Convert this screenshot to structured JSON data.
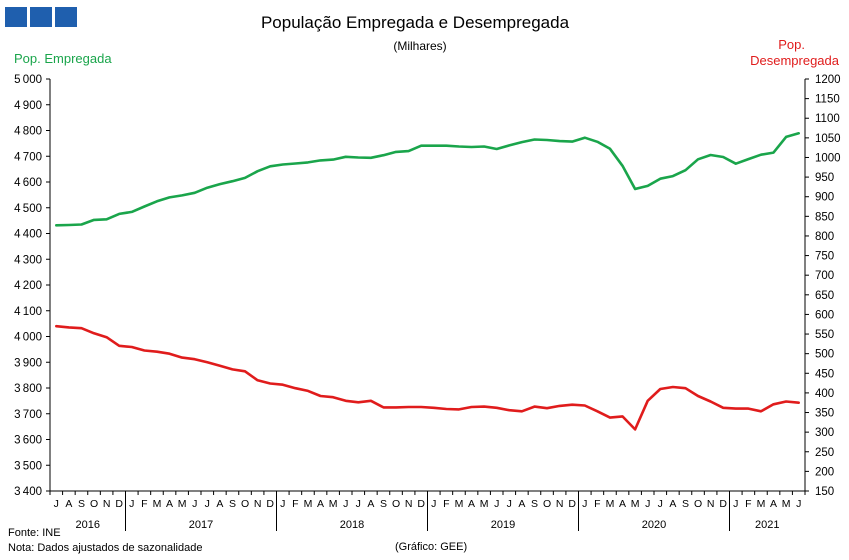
{
  "logo": {
    "colors": [
      "#1f5fae",
      "#1f5fae",
      "#1f5fae"
    ]
  },
  "source_text": "Fonte: INE",
  "note_text": "Nota: Dados ajustados de sazonalidade",
  "credit_text": "(Gráfico: GEE)",
  "chart_data": {
    "type": "line",
    "title": "População Empregada e Desempregada",
    "subtitle": "(Milhares)",
    "y_left_label": "Pop. Empregada",
    "y_right_label": [
      "Pop.",
      "Desempregada"
    ],
    "y_left_range": [
      3400,
      5000
    ],
    "y_left_step": 100,
    "y_right_range": [
      150,
      1200
    ],
    "y_right_step": 50,
    "grid": false,
    "months": [
      "J",
      "A",
      "S",
      "O",
      "N",
      "D",
      "J",
      "F",
      "M",
      "A",
      "M",
      "J",
      "J",
      "A",
      "S",
      "O",
      "N",
      "D",
      "J",
      "F",
      "M",
      "A",
      "M",
      "J",
      "J",
      "A",
      "S",
      "O",
      "N",
      "D",
      "J",
      "F",
      "M",
      "A",
      "M",
      "J",
      "J",
      "A",
      "S",
      "O",
      "N",
      "D",
      "J",
      "F",
      "M",
      "A",
      "M",
      "J",
      "J",
      "A",
      "S",
      "O",
      "N",
      "D",
      "J",
      "F",
      "M",
      "A",
      "M",
      "J"
    ],
    "years": [
      {
        "label": "2016",
        "start": 0,
        "count": 6
      },
      {
        "label": "2017",
        "start": 6,
        "count": 12
      },
      {
        "label": "2018",
        "start": 18,
        "count": 12
      },
      {
        "label": "2019",
        "start": 30,
        "count": 12
      },
      {
        "label": "2020",
        "start": 42,
        "count": 12
      },
      {
        "label": "2021",
        "start": 54,
        "count": 6
      }
    ],
    "series": [
      {
        "name": "Pop. Empregada",
        "axis": "left",
        "color": "#1aa54b",
        "values": [
          4432,
          4433,
          4435,
          4453,
          4455,
          4476,
          4484,
          4505,
          4525,
          4540,
          4548,
          4558,
          4578,
          4592,
          4603,
          4616,
          4642,
          4661,
          4668,
          4672,
          4676,
          4684,
          4687,
          4698,
          4695,
          4694,
          4704,
          4717,
          4720,
          4741,
          4741,
          4741,
          4738,
          4736,
          4738,
          4728,
          4742,
          4755,
          4765,
          4763,
          4759,
          4757,
          4772,
          4756,
          4729,
          4663,
          4573,
          4585,
          4613,
          4623,
          4646,
          4688,
          4705,
          4697,
          4671,
          4689,
          4706,
          4714,
          4775,
          4789
        ]
      },
      {
        "name": "Pop. Desempregada",
        "axis": "right",
        "color": "#e01c1c",
        "values": [
          570,
          567,
          565,
          552,
          542,
          520,
          517,
          508,
          505,
          500,
          490,
          486,
          478,
          469,
          460,
          455,
          432,
          424,
          421,
          412,
          405,
          392,
          389,
          380,
          376,
          380,
          363,
          363,
          364,
          364,
          362,
          359,
          358,
          364,
          365,
          362,
          356,
          353,
          365,
          361,
          367,
          370,
          368,
          353,
          337,
          340,
          307,
          380,
          410,
          415,
          412,
          392,
          378,
          362,
          360,
          360,
          353,
          371,
          378,
          375
        ]
      }
    ]
  }
}
